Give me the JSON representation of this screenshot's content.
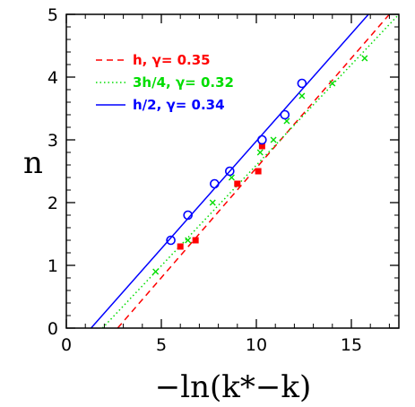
{
  "chart_data": {
    "type": "scatter",
    "xlabel": "−ln(k*−k)",
    "ylabel": "n",
    "xlim": [
      0,
      17.5
    ],
    "ylim": [
      0,
      5
    ],
    "x_ticks": [
      "0",
      "5",
      "10",
      "15"
    ],
    "y_ticks": [
      "0",
      "1",
      "2",
      "3",
      "4",
      "5"
    ],
    "grid": false,
    "legend_position": "top-left",
    "series": [
      {
        "name": "h, γ= 0.35",
        "color": "#ff0000",
        "marker": "filled-square",
        "line_style": "dashed",
        "points": [
          [
            6.0,
            1.3
          ],
          [
            6.8,
            1.4
          ],
          [
            9.0,
            2.3
          ],
          [
            10.1,
            2.5
          ],
          [
            10.3,
            2.9
          ]
        ],
        "fit": {
          "x": [
            2.7,
            17.0
          ],
          "y": [
            0,
            5
          ]
        }
      },
      {
        "name": "3h/4, γ= 0.32",
        "color": "#00dd00",
        "marker": "cross",
        "line_style": "dotted",
        "points": [
          [
            4.7,
            0.9
          ],
          [
            6.4,
            1.4
          ],
          [
            7.7,
            2.0
          ],
          [
            8.7,
            2.4
          ],
          [
            10.2,
            2.8
          ],
          [
            10.9,
            3.0
          ],
          [
            11.6,
            3.3
          ],
          [
            12.4,
            3.7
          ],
          [
            14.0,
            3.9
          ],
          [
            15.7,
            4.3
          ]
        ],
        "fit": {
          "x": [
            1.9,
            17.5
          ],
          "y": [
            0,
            5
          ]
        }
      },
      {
        "name": "h/2, γ= 0.34",
        "color": "#0000ff",
        "marker": "open-circle",
        "line_style": "solid",
        "points": [
          [
            5.5,
            1.4
          ],
          [
            6.4,
            1.8
          ],
          [
            7.8,
            2.3
          ],
          [
            8.6,
            2.5
          ],
          [
            10.3,
            3.0
          ],
          [
            11.5,
            3.4
          ],
          [
            12.4,
            3.9
          ]
        ],
        "fit": {
          "x": [
            1.3,
            15.9
          ],
          "y": [
            0,
            5
          ]
        }
      }
    ]
  }
}
